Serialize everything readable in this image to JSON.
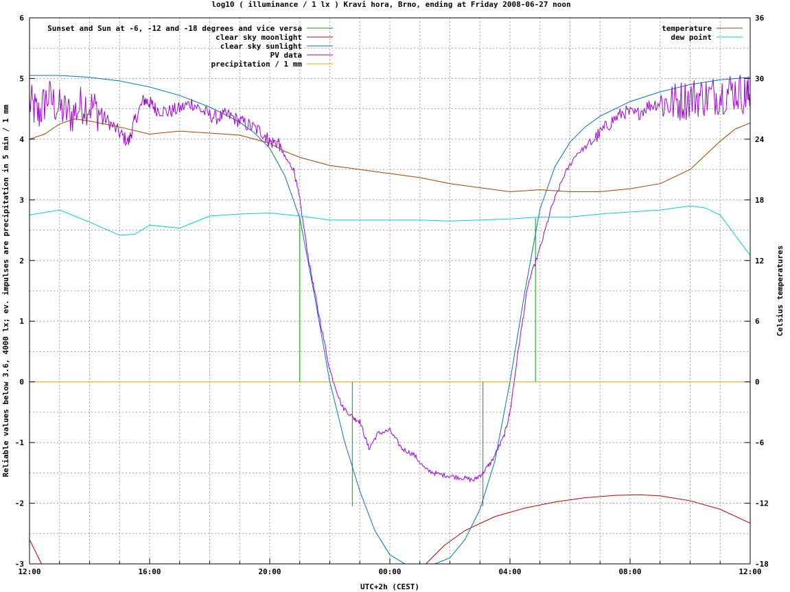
{
  "chart_data": {
    "type": "line",
    "title": "log10 ( illuminance / 1 lx ) Kravi hora, Brno, ending at Friday 2008-06-27 noon",
    "xlabel": "UTC+2h (CEST)",
    "ylabel": "Reliable values below 3.6, 4000 lx; ev. impulses are precipitation in 5 min / 1 mm",
    "y2label": "Celsius temperatures",
    "xlim": [
      12,
      36
    ],
    "ylim": [
      -3,
      6
    ],
    "y2lim": [
      -18,
      36
    ],
    "grid": true,
    "legend_left_position": "top-left",
    "legend_right_position": "top-right",
    "x_ticks": [
      {
        "value": 12,
        "label": "12:00"
      },
      {
        "value": 16,
        "label": "16:00"
      },
      {
        "value": 20,
        "label": "20:00"
      },
      {
        "value": 24,
        "label": "00:00"
      },
      {
        "value": 28,
        "label": "04:00"
      },
      {
        "value": 32,
        "label": "08:00"
      },
      {
        "value": 36,
        "label": "12:00"
      }
    ],
    "y_ticks": [
      {
        "value": 6,
        "label": "6"
      },
      {
        "value": 5,
        "label": "5"
      },
      {
        "value": 4,
        "label": "4"
      },
      {
        "value": 3,
        "label": "3"
      },
      {
        "value": 2,
        "label": "2"
      },
      {
        "value": 1,
        "label": "1"
      },
      {
        "value": 0,
        "label": "0"
      },
      {
        "value": -1,
        "label": "-1"
      },
      {
        "value": -2,
        "label": "-2"
      },
      {
        "value": -3,
        "label": "-3"
      }
    ],
    "y2_ticks": [
      {
        "value": 36,
        "label": "36"
      },
      {
        "value": 30,
        "label": "30"
      },
      {
        "value": 24,
        "label": "24"
      },
      {
        "value": 18,
        "label": "18"
      },
      {
        "value": 12,
        "label": "12"
      },
      {
        "value": 6,
        "label": "6"
      },
      {
        "value": 0,
        "label": "0"
      },
      {
        "value": -6,
        "label": "-6"
      },
      {
        "value": -12,
        "label": "-12"
      },
      {
        "value": -18,
        "label": "-18"
      }
    ],
    "series": [
      {
        "name": "Sunset and Sun at -6, -12 and -18 degrees and vice versa",
        "color": "#00a000",
        "axis": "y",
        "style": "impulses",
        "x": [
          21.0,
          22.75,
          27.1,
          28.85
        ],
        "values": [
          2.7,
          -2.05,
          -2.05,
          2.7
        ]
      },
      {
        "name": "clear sky moonlight",
        "color": "#c00000",
        "axis": "y",
        "style": "line",
        "x": [
          12.0,
          12.4,
          25.2,
          25.8,
          26.5,
          27.5,
          28.5,
          29.5,
          30.5,
          31.5,
          32.3,
          33.0,
          34.0,
          35.0,
          36.0
        ],
        "values": [
          -2.6,
          -3.0,
          -3.0,
          -2.7,
          -2.45,
          -2.22,
          -2.08,
          -1.98,
          -1.91,
          -1.87,
          -1.86,
          -1.88,
          -1.96,
          -2.1,
          -2.33
        ]
      },
      {
        "name": "clear sky sunlight",
        "color": "#0070c0",
        "axis": "y",
        "style": "line",
        "x": [
          12.0,
          13.0,
          14.0,
          15.0,
          16.0,
          17.0,
          18.0,
          19.0,
          19.5,
          20.0,
          20.5,
          21.0,
          21.5,
          22.0,
          22.5,
          23.0,
          23.5,
          24.0,
          24.5,
          25.0,
          25.5,
          26.0,
          26.5,
          27.0,
          27.5,
          28.0,
          28.5,
          29.0,
          29.5,
          30.0,
          30.5,
          31.0,
          32.0,
          33.0,
          34.0,
          35.0,
          36.0
        ],
        "values": [
          5.05,
          5.05,
          5.02,
          4.96,
          4.86,
          4.72,
          4.53,
          4.28,
          4.1,
          3.85,
          3.4,
          2.7,
          1.4,
          0.0,
          -1.0,
          -1.8,
          -2.45,
          -2.85,
          -3.0,
          -3.0,
          -3.0,
          -2.9,
          -2.6,
          -2.1,
          -1.3,
          0.0,
          1.5,
          2.85,
          3.55,
          3.95,
          4.2,
          4.38,
          4.62,
          4.78,
          4.9,
          4.98,
          5.02
        ]
      },
      {
        "name": "PV data",
        "color": "#a000e0",
        "axis": "y",
        "style": "noisy-line",
        "x": [
          12.0,
          12.3,
          12.6,
          13.0,
          13.4,
          13.8,
          14.2,
          14.6,
          15.0,
          15.3,
          15.5,
          15.8,
          16.0,
          16.2,
          16.6,
          17.0,
          17.4,
          17.8,
          18.2,
          18.6,
          19.0,
          19.4,
          19.8,
          20.0,
          20.3,
          20.5,
          20.8,
          21.0,
          21.3,
          21.6,
          22.0,
          22.4,
          22.8,
          23.0,
          23.3,
          23.6,
          24.0,
          24.4,
          24.8,
          25.2,
          25.6,
          26.0,
          26.4,
          26.8,
          27.1,
          27.4,
          27.8,
          28.0,
          28.3,
          28.6,
          29.0,
          29.4,
          29.8,
          30.2,
          30.6,
          31.0,
          31.4,
          31.8,
          32.2,
          32.6,
          33.0,
          33.4,
          33.8,
          34.2,
          34.6,
          35.0,
          35.4,
          35.8,
          36.0
        ],
        "values": [
          4.6,
          4.4,
          4.7,
          4.5,
          4.4,
          4.6,
          4.5,
          4.3,
          4.1,
          3.95,
          4.3,
          4.65,
          4.6,
          4.5,
          4.45,
          4.5,
          4.6,
          4.45,
          4.35,
          4.4,
          4.3,
          4.2,
          4.1,
          3.95,
          3.95,
          3.7,
          3.5,
          3.0,
          2.0,
          1.2,
          0.2,
          -0.4,
          -0.6,
          -0.65,
          -1.1,
          -0.85,
          -0.8,
          -1.1,
          -1.2,
          -1.45,
          -1.52,
          -1.55,
          -1.58,
          -1.62,
          -1.5,
          -1.3,
          -0.9,
          -0.5,
          0.6,
          1.6,
          2.2,
          2.9,
          3.4,
          3.75,
          3.9,
          4.1,
          4.3,
          4.45,
          4.4,
          4.55,
          4.6,
          4.6,
          4.65,
          4.7,
          4.7,
          4.75,
          4.8,
          4.75,
          4.7
        ]
      },
      {
        "name": "precipitation / 1 mm",
        "color": "#e0b000",
        "axis": "y",
        "style": "line",
        "x": [
          12.0,
          36.0
        ],
        "values": [
          0.0,
          0.0
        ]
      },
      {
        "name": "temperature",
        "color": "#a04000",
        "axis": "y2",
        "style": "line",
        "x": [
          12.0,
          12.5,
          13.0,
          13.5,
          14.0,
          15.0,
          16.0,
          17.0,
          18.0,
          19.0,
          20.0,
          20.5,
          21.0,
          22.0,
          23.0,
          24.0,
          25.0,
          26.0,
          27.0,
          28.0,
          29.0,
          30.0,
          31.0,
          32.0,
          33.0,
          34.0,
          35.0,
          35.5,
          36.0
        ],
        "values": [
          24.0,
          24.5,
          25.5,
          26.0,
          25.8,
          25.2,
          24.5,
          24.8,
          24.6,
          24.4,
          23.6,
          22.8,
          22.2,
          21.4,
          21.0,
          20.6,
          20.2,
          19.6,
          19.2,
          18.8,
          19.0,
          18.8,
          18.8,
          19.1,
          19.6,
          21.0,
          23.8,
          25.0,
          25.6
        ]
      },
      {
        "name": "dew point",
        "color": "#00d0d0",
        "axis": "y2",
        "style": "line",
        "x": [
          12.0,
          13.0,
          14.0,
          15.0,
          15.5,
          16.0,
          17.0,
          18.0,
          19.0,
          20.0,
          21.0,
          22.0,
          23.0,
          24.0,
          25.0,
          26.0,
          27.0,
          28.0,
          29.0,
          30.0,
          31.0,
          32.0,
          33.0,
          34.0,
          34.5,
          35.0,
          35.5,
          36.0
        ],
        "values": [
          16.5,
          17.0,
          15.8,
          14.5,
          14.6,
          15.5,
          15.2,
          16.4,
          16.6,
          16.7,
          16.4,
          16.0,
          16.0,
          16.0,
          16.0,
          15.9,
          16.0,
          16.1,
          16.3,
          16.3,
          16.6,
          16.8,
          17.0,
          17.4,
          17.2,
          16.5,
          14.5,
          12.5
        ]
      }
    ]
  }
}
